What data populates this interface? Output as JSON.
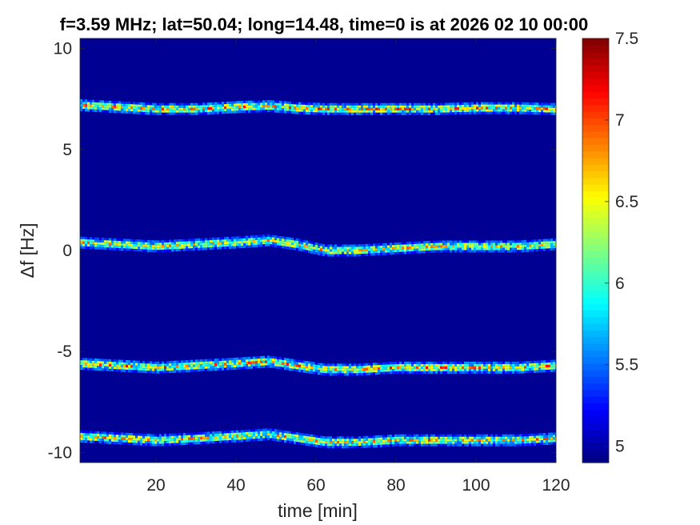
{
  "chart_data": {
    "type": "heatmap",
    "title": "f=3.59 MHz;  lat=50.04; long=14.48, time=0 is at 2026 02 10 00:00",
    "xlabel": "time [min]",
    "ylabel": "Δf [Hz]",
    "xlim": [
      1,
      120
    ],
    "ylim": [
      -10.5,
      10.5
    ],
    "xticks": [
      20,
      40,
      60,
      80,
      100,
      120
    ],
    "yticks": [
      -10,
      -5,
      0,
      5,
      10
    ],
    "colorbar": {
      "colormap": "jet",
      "clim": [
        4.9,
        7.5
      ],
      "ticks": [
        "5",
        "5.5",
        "6",
        "6.5",
        "7",
        "7.5"
      ],
      "tick_values": [
        5,
        5.5,
        6,
        6.5,
        7,
        7.5
      ]
    },
    "background_level": 4.95,
    "traces": [
      {
        "time": [
          0,
          10,
          20,
          30,
          40,
          48,
          55,
          62,
          70,
          80,
          90,
          100,
          110,
          120
        ],
        "df": [
          7.2,
          7.1,
          7.0,
          7.0,
          7.1,
          7.15,
          7.05,
          7.0,
          7.0,
          7.0,
          7.0,
          7.05,
          7.05,
          7.0
        ],
        "peak": 7.0
      },
      {
        "time": [
          0,
          10,
          20,
          30,
          40,
          48,
          55,
          62,
          70,
          80,
          90,
          100,
          110,
          120
        ],
        "df": [
          0.4,
          0.3,
          0.2,
          0.3,
          0.4,
          0.5,
          0.3,
          0.0,
          0.0,
          0.1,
          0.2,
          0.2,
          0.2,
          0.3
        ],
        "peak": 6.8
      },
      {
        "time": [
          0,
          10,
          20,
          30,
          40,
          48,
          55,
          62,
          70,
          80,
          90,
          100,
          110,
          120
        ],
        "df": [
          -5.6,
          -5.7,
          -5.8,
          -5.7,
          -5.6,
          -5.5,
          -5.7,
          -5.9,
          -5.9,
          -5.8,
          -5.8,
          -5.8,
          -5.8,
          -5.7
        ],
        "peak": 7.0
      },
      {
        "time": [
          0,
          10,
          20,
          30,
          40,
          48,
          55,
          62,
          70,
          80,
          90,
          100,
          110,
          120
        ],
        "df": [
          -9.2,
          -9.3,
          -9.4,
          -9.3,
          -9.2,
          -9.1,
          -9.3,
          -9.5,
          -9.5,
          -9.4,
          -9.4,
          -9.4,
          -9.4,
          -9.3
        ],
        "peak": 6.9
      }
    ]
  }
}
